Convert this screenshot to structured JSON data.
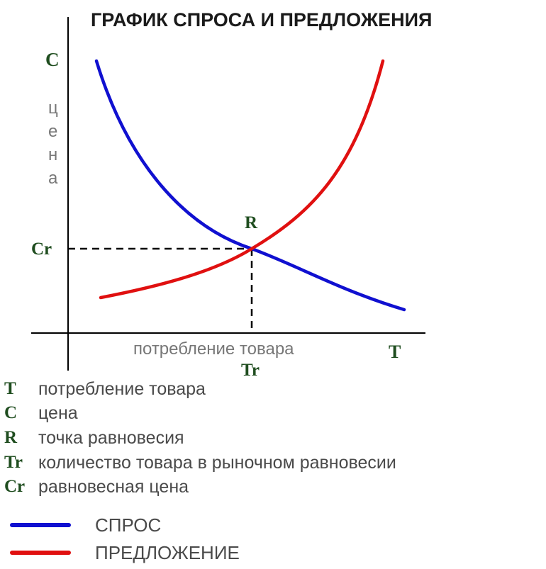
{
  "title": "ГРАФИК СПРОСА И ПРЕДЛОЖЕНИЯ",
  "axes": {
    "y_symbol": "C",
    "y_word_letters": [
      "ц",
      "е",
      "н",
      "а"
    ],
    "x_word": "потребление товара",
    "x_symbol": "T"
  },
  "equilibrium": {
    "point_label": "R",
    "price_label": "Cr",
    "quantity_label": "Tr"
  },
  "legend": [
    {
      "symbol": "T",
      "text": "потребление товара"
    },
    {
      "symbol": "C",
      "text": "цена"
    },
    {
      "symbol": "R",
      "text": "точка равновесия"
    },
    {
      "symbol": "Tr",
      "text": "количество товара в рыночном равновесии"
    },
    {
      "symbol": "Cr",
      "text": "равновесная цена"
    }
  ],
  "curves": [
    {
      "name": "СПРОС",
      "color": "#1010d0"
    },
    {
      "name": "ПРЕДЛОЖЕНИЕ",
      "color": "#e01010"
    }
  ],
  "colors": {
    "axis": "#000000",
    "symbol_green": "#1f4d1f",
    "text_gray": "#4a4a4a"
  }
}
